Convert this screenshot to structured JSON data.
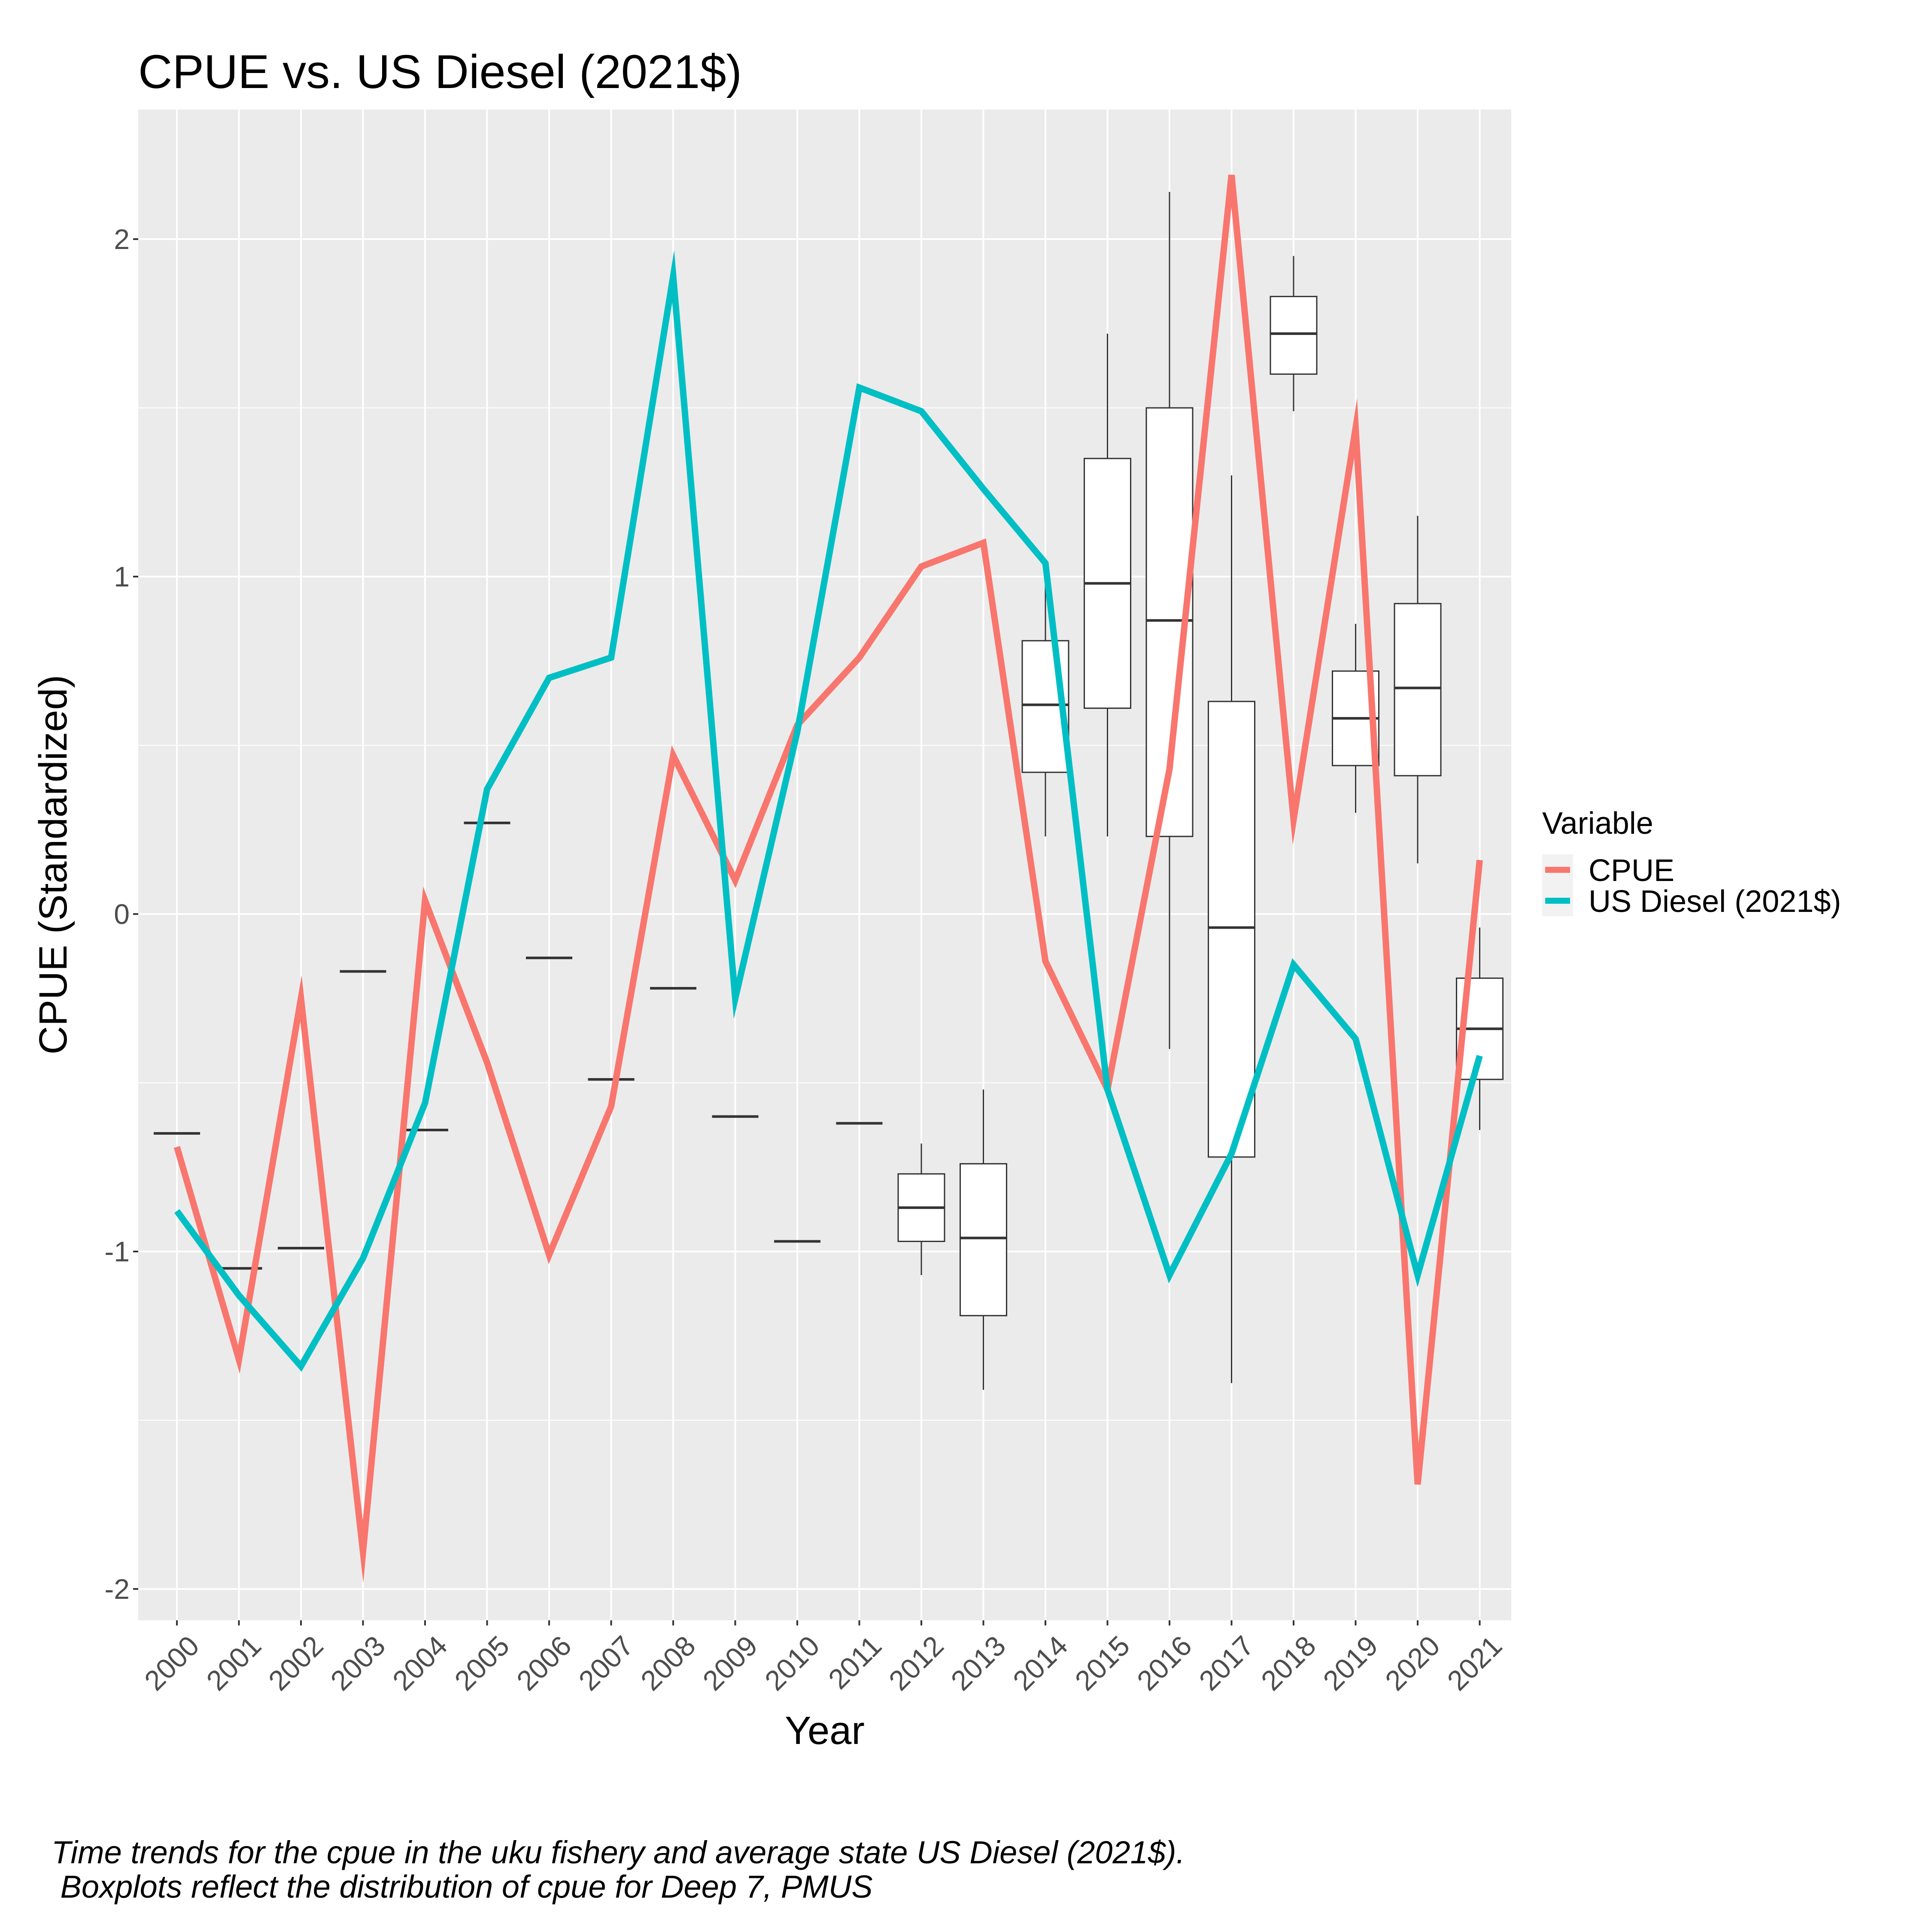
{
  "chart_data": {
    "type": "line",
    "title": "CPUE vs. US Diesel (2021$)",
    "xlabel": "Year",
    "ylabel": "CPUE (Standardized)",
    "ylim": [
      -2.1,
      2.4
    ],
    "yticks": [
      -2,
      -1,
      0,
      1,
      2
    ],
    "ytick_labels": [
      "-2",
      "-1",
      "0",
      "1",
      "2"
    ],
    "categories": [
      "2000",
      "2001",
      "2002",
      "2003",
      "2004",
      "2005",
      "2006",
      "2007",
      "2008",
      "2009",
      "2010",
      "2011",
      "2012",
      "2013",
      "2014",
      "2015",
      "2016",
      "2017",
      "2018",
      "2019",
      "2020",
      "2021"
    ],
    "legend": {
      "title": "Variable",
      "position": "right"
    },
    "series": [
      {
        "name": "CPUE",
        "color": "#F8766D",
        "values": [
          -0.69,
          -1.32,
          -0.25,
          -1.89,
          0.04,
          -0.44,
          -1.01,
          -0.57,
          0.47,
          0.1,
          0.56,
          0.76,
          1.03,
          1.1,
          -0.14,
          -0.52,
          0.43,
          2.19,
          0.28,
          1.44,
          -1.69,
          0.16
        ]
      },
      {
        "name": "US Diesel (2021$)",
        "color": "#00BFC4",
        "values": [
          -0.88,
          -1.13,
          -1.34,
          -1.02,
          -0.56,
          0.37,
          0.7,
          0.76,
          1.89,
          -0.25,
          0.54,
          1.56,
          1.49,
          1.26,
          1.04,
          -0.52,
          -1.07,
          -0.71,
          -0.15,
          -0.37,
          -1.07,
          -0.42
        ]
      }
    ],
    "boxplots": [
      {
        "x": "2000",
        "median": -0.65
      },
      {
        "x": "2001",
        "median": -1.05
      },
      {
        "x": "2002",
        "median": -0.99
      },
      {
        "x": "2003",
        "median": -0.17
      },
      {
        "x": "2004",
        "median": -0.64
      },
      {
        "x": "2005",
        "median": 0.27
      },
      {
        "x": "2006",
        "median": -0.13
      },
      {
        "x": "2007",
        "median": -0.49
      },
      {
        "x": "2008",
        "median": -0.22
      },
      {
        "x": "2009",
        "median": -0.6
      },
      {
        "x": "2010",
        "median": -0.97
      },
      {
        "x": "2011",
        "median": -0.62
      },
      {
        "x": "2012",
        "min": -1.07,
        "q1": -0.97,
        "median": -0.87,
        "q3": -0.77,
        "max": -0.68
      },
      {
        "x": "2013",
        "min": -1.41,
        "q1": -1.19,
        "median": -0.96,
        "q3": -0.74,
        "max": -0.52
      },
      {
        "x": "2014",
        "min": 0.23,
        "q1": 0.42,
        "median": 0.62,
        "q3": 0.81,
        "max": 1.0
      },
      {
        "x": "2015",
        "min": 0.23,
        "q1": 0.61,
        "median": 0.98,
        "q3": 1.35,
        "max": 1.72
      },
      {
        "x": "2016",
        "min": -0.4,
        "q1": 0.23,
        "median": 0.87,
        "q3": 1.5,
        "max": 2.14
      },
      {
        "x": "2017",
        "min": -1.39,
        "q1": -0.72,
        "median": -0.04,
        "q3": 0.63,
        "max": 1.3
      },
      {
        "x": "2018",
        "min": 1.49,
        "q1": 1.6,
        "median": 1.72,
        "q3": 1.83,
        "max": 1.95
      },
      {
        "x": "2019",
        "min": 0.3,
        "q1": 0.44,
        "median": 0.58,
        "q3": 0.72,
        "max": 0.86
      },
      {
        "x": "2020",
        "min": 0.15,
        "q1": 0.41,
        "median": 0.67,
        "q3": 0.92,
        "max": 1.18
      },
      {
        "x": "2021",
        "min": -0.64,
        "q1": -0.49,
        "median": -0.34,
        "q3": -0.19,
        "max": -0.04
      }
    ],
    "grid": true,
    "caption": [
      "Time trends for the cpue in the uku fishery and average state US Diesel (2021$).",
      " Boxplots reflect the distribution of cpue for Deep 7, PMUS"
    ],
    "colors": {
      "panel_background": "#EBEBEB",
      "grid": "#FFFFFF",
      "box_fill": "#FFFFFF",
      "box_stroke": "#333333"
    }
  }
}
